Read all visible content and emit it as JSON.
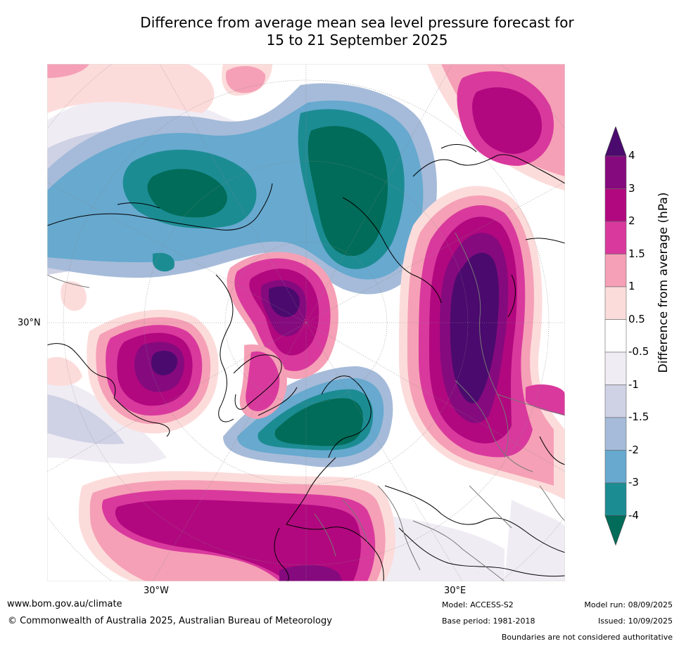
{
  "title_line1": "Difference from average mean sea level pressure forecast for",
  "title_line2": "15 to 21 September 2025",
  "map_labels": {
    "lat_30n": "30°N",
    "lon_30w": "30°W",
    "lon_30e": "30°E"
  },
  "colorbar": {
    "title": "Difference from average (hPa)",
    "ticks": [
      "4",
      "3",
      "2",
      "1.5",
      "1",
      "0.5",
      "-0.5",
      "-1",
      "-1.5",
      "-2",
      "-3",
      "-4"
    ],
    "colors": [
      "#4b0a6e",
      "#850a7e",
      "#b1087f",
      "#d9399d",
      "#f5a0b6",
      "#fcdcdb",
      "#ffffff",
      "#f0ecf4",
      "#cfd1e5",
      "#a6bbd9",
      "#67a9cf",
      "#1c8c93",
      "#016c59"
    ]
  },
  "footer": {
    "url": "www.bom.gov.au/climate",
    "copyright": "© Commonwealth of Australia 2025, Australian Bureau of Meteorology",
    "model": "Model: ACCESS-S2",
    "base_period": "Base period: 1981-2018",
    "model_run": "Model run: 08/09/2025",
    "issued": "Issued: 10/09/2025",
    "boundaries": "Boundaries are not considered authoritative"
  }
}
